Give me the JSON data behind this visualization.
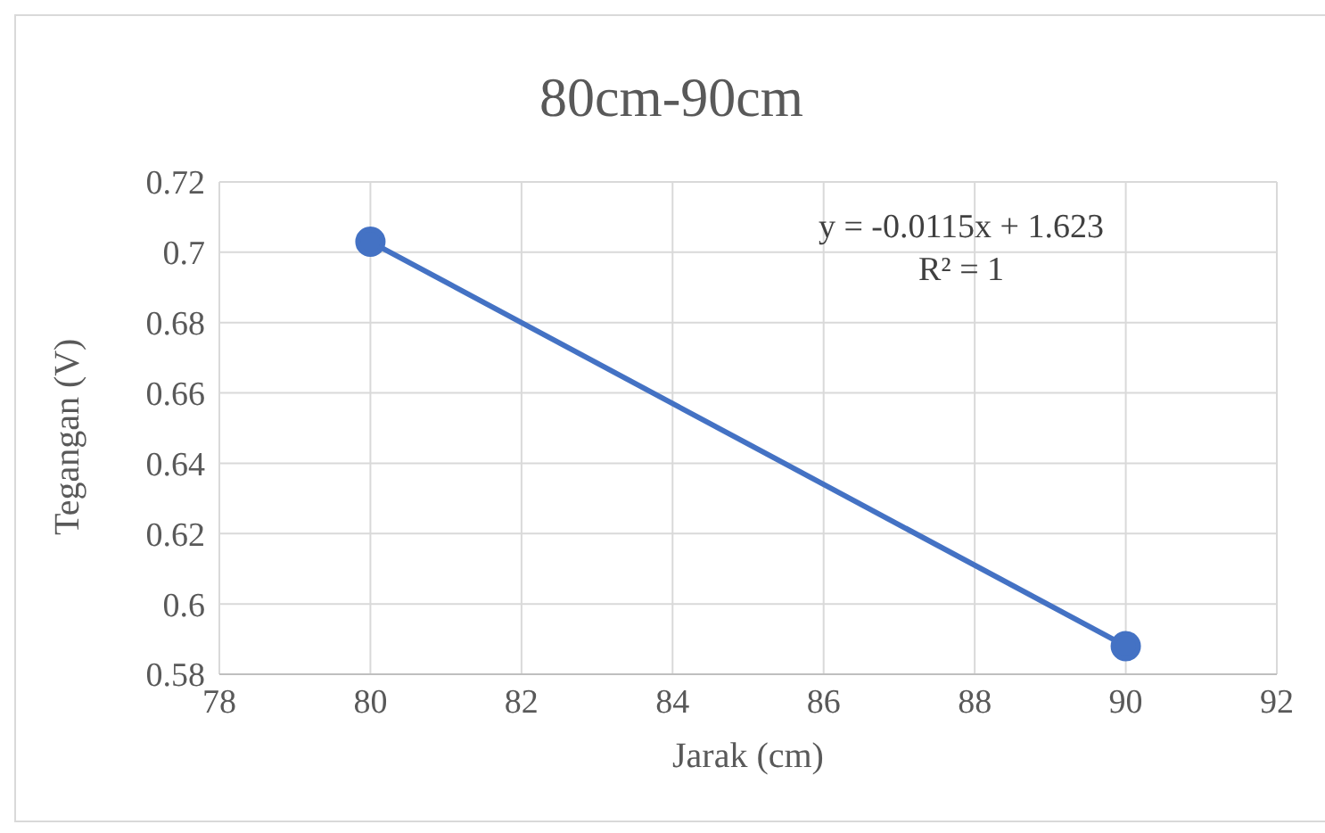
{
  "chart_data": {
    "type": "line",
    "title": "80cm-90cm",
    "xlabel": "Jarak (cm)",
    "ylabel": "Tegangan (V)",
    "x": [
      80,
      90
    ],
    "series": [
      {
        "color": "#4472c4",
        "values": [
          0.703,
          0.588
        ]
      }
    ],
    "xlim": [
      78,
      92
    ],
    "xticks": [
      78,
      80,
      82,
      84,
      86,
      88,
      90,
      92
    ],
    "ylim": [
      0.58,
      0.72
    ],
    "yticks": [
      0.58,
      0.6,
      0.62,
      0.64,
      0.66,
      0.68,
      0.7,
      0.72
    ],
    "grid": true,
    "legend": false,
    "marker": "circle",
    "line_style": "solid",
    "annotations": [
      "y = -0.0115x + 1.623",
      "R² = 1"
    ]
  }
}
